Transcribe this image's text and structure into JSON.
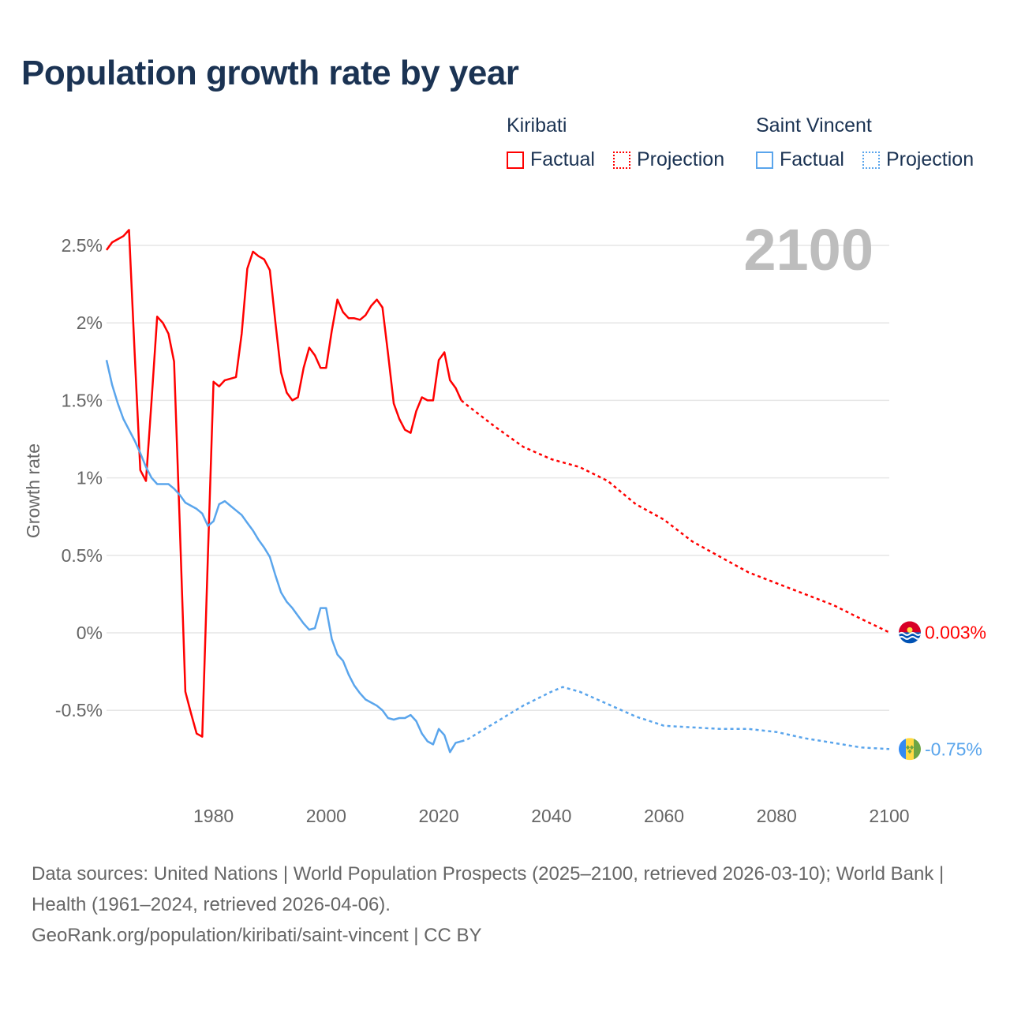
{
  "chart_data": {
    "type": "line",
    "title": "Population growth rate by year",
    "ylabel": "Growth rate",
    "xlabel": "",
    "xlim": [
      1961,
      2100
    ],
    "ylim": [
      -0.85,
      2.65
    ],
    "x_ticks": [
      1980,
      2000,
      2020,
      2040,
      2060,
      2080,
      2100
    ],
    "x_tick_labels": [
      "1980",
      "2000",
      "2020",
      "2040",
      "2060",
      "2080",
      "2100"
    ],
    "y_ticks": [
      -0.5,
      0,
      0.5,
      1,
      1.5,
      2,
      2.5
    ],
    "y_tick_labels": [
      "-0.5%",
      "0%",
      "0.5%",
      "1%",
      "1.5%",
      "2%",
      "2.5%"
    ],
    "grid": true,
    "year_label": "2100",
    "legend": {
      "placement": "top-right",
      "groups": [
        {
          "name": "Kiribati",
          "factual": "Factual",
          "projection": "Projection"
        },
        {
          "name": "Saint Vincent",
          "factual": "Factual",
          "projection": "Projection"
        }
      ]
    },
    "series": [
      {
        "name": "Kiribati",
        "color": "#ff0000",
        "end_label": "0.003%",
        "factual": {
          "x": [
            1961,
            1962,
            1963,
            1964,
            1965,
            1966,
            1967,
            1968,
            1969,
            1970,
            1971,
            1972,
            1973,
            1974,
            1975,
            1976,
            1977,
            1978,
            1979,
            1980,
            1981,
            1982,
            1983,
            1984,
            1985,
            1986,
            1987,
            1988,
            1989,
            1990,
            1991,
            1992,
            1993,
            1994,
            1995,
            1996,
            1997,
            1998,
            1999,
            2000,
            2001,
            2002,
            2003,
            2004,
            2005,
            2006,
            2007,
            2008,
            2009,
            2010,
            2011,
            2012,
            2013,
            2014,
            2015,
            2016,
            2017,
            2018,
            2019,
            2020,
            2021,
            2022,
            2023,
            2024
          ],
          "y": [
            2.47,
            2.52,
            2.54,
            2.56,
            2.6,
            1.8,
            1.05,
            0.98,
            1.5,
            2.04,
            2.0,
            1.93,
            1.75,
            0.7,
            -0.38,
            -0.52,
            -0.65,
            -0.67,
            0.5,
            1.62,
            1.59,
            1.63,
            1.64,
            1.65,
            1.93,
            2.35,
            2.46,
            2.43,
            2.41,
            2.34,
            2.0,
            1.68,
            1.55,
            1.5,
            1.52,
            1.71,
            1.84,
            1.79,
            1.71,
            1.71,
            1.95,
            2.15,
            2.07,
            2.03,
            2.03,
            2.02,
            2.05,
            2.11,
            2.15,
            2.1,
            1.8,
            1.48,
            1.38,
            1.31,
            1.29,
            1.43,
            1.52,
            1.5,
            1.5,
            1.76,
            1.81,
            1.63,
            1.58,
            1.5
          ]
        },
        "projection": {
          "x": [
            2024,
            2025,
            2030,
            2035,
            2040,
            2045,
            2050,
            2055,
            2060,
            2065,
            2070,
            2075,
            2080,
            2085,
            2090,
            2095,
            2100
          ],
          "y": [
            1.5,
            1.47,
            1.33,
            1.2,
            1.12,
            1.07,
            0.98,
            0.83,
            0.73,
            0.59,
            0.49,
            0.39,
            0.32,
            0.25,
            0.18,
            0.09,
            0.003
          ]
        }
      },
      {
        "name": "Saint Vincent",
        "color": "#5aa5ec",
        "end_label": "-0.75%",
        "factual": {
          "x": [
            1961,
            1962,
            1963,
            1964,
            1965,
            1966,
            1967,
            1968,
            1969,
            1970,
            1971,
            1972,
            1973,
            1974,
            1975,
            1976,
            1977,
            1978,
            1979,
            1980,
            1981,
            1982,
            1983,
            1984,
            1985,
            1986,
            1987,
            1988,
            1989,
            1990,
            1991,
            1992,
            1993,
            1994,
            1995,
            1996,
            1997,
            1998,
            1999,
            2000,
            2001,
            2002,
            2003,
            2004,
            2005,
            2006,
            2007,
            2008,
            2009,
            2010,
            2011,
            2012,
            2013,
            2014,
            2015,
            2016,
            2017,
            2018,
            2019,
            2020,
            2021,
            2022,
            2023,
            2024
          ],
          "y": [
            1.76,
            1.6,
            1.48,
            1.38,
            1.31,
            1.24,
            1.16,
            1.07,
            1.0,
            0.96,
            0.96,
            0.96,
            0.93,
            0.89,
            0.84,
            0.82,
            0.8,
            0.77,
            0.69,
            0.72,
            0.83,
            0.85,
            0.82,
            0.79,
            0.76,
            0.71,
            0.66,
            0.6,
            0.55,
            0.49,
            0.37,
            0.26,
            0.2,
            0.16,
            0.11,
            0.06,
            0.02,
            0.03,
            0.16,
            0.16,
            -0.04,
            -0.14,
            -0.18,
            -0.27,
            -0.34,
            -0.39,
            -0.43,
            -0.45,
            -0.47,
            -0.5,
            -0.55,
            -0.56,
            -0.55,
            -0.55,
            -0.53,
            -0.57,
            -0.65,
            -0.7,
            -0.72,
            -0.62,
            -0.66,
            -0.77,
            -0.71,
            -0.7
          ]
        },
        "projection": {
          "x": [
            2024,
            2025,
            2030,
            2035,
            2040,
            2042,
            2045,
            2050,
            2055,
            2060,
            2065,
            2070,
            2075,
            2080,
            2085,
            2090,
            2095,
            2100
          ],
          "y": [
            -0.7,
            -0.69,
            -0.58,
            -0.47,
            -0.38,
            -0.35,
            -0.38,
            -0.46,
            -0.54,
            -0.6,
            -0.61,
            -0.62,
            -0.62,
            -0.64,
            -0.68,
            -0.71,
            -0.74,
            -0.75
          ]
        }
      }
    ]
  },
  "footer": {
    "sources": "Data sources: United Nations | World Population Prospects (2025–2100, retrieved 2026-03-10); World Bank | Health (1961–2024, retrieved 2026-04-06).",
    "link": "GeoRank.org/population/kiribati/saint-vincent | CC BY"
  }
}
